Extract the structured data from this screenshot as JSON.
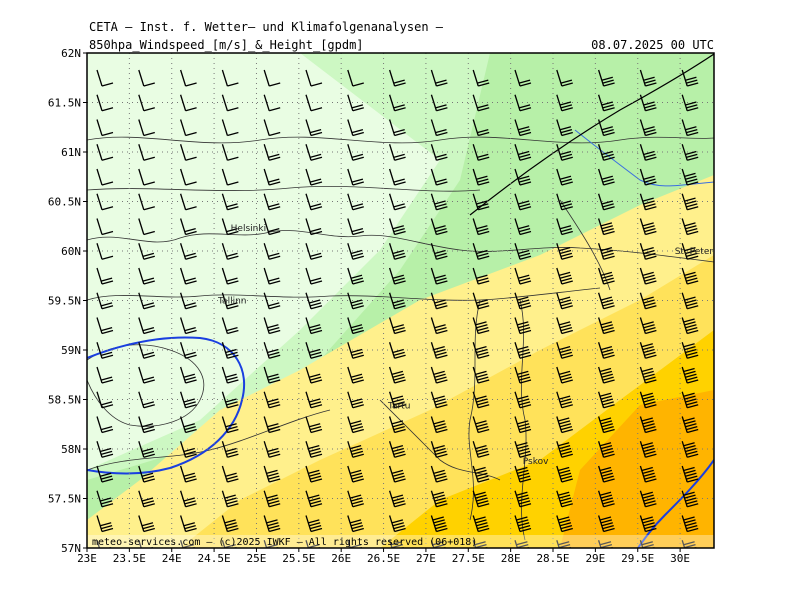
{
  "header": {
    "line1": "CETA – Inst. f. Wetter– und Klimafolgenanalysen –",
    "line2": "850hpa_Windspeed_[m/s]_&_Height_[gpdm]",
    "date": "08.07.2025 00 UTC"
  },
  "map": {
    "lat_labels": [
      "62N",
      "61.5N",
      "61N",
      "60.5N",
      "60N",
      "59.5N",
      "59N",
      "58.5N",
      "58N",
      "57.5N",
      "57N"
    ],
    "lon_labels": [
      "23E",
      "23.5E",
      "24E",
      "24.5E",
      "25E",
      "25.5E",
      "26E",
      "26.5E",
      "27E",
      "27.5E",
      "28E",
      "28.5E",
      "29E",
      "29.5E",
      "30E"
    ],
    "cities": [
      {
        "name": "Helsinki",
        "lon": 24.94,
        "lat": 60.17
      },
      {
        "name": "Tallinn",
        "lon": 24.75,
        "lat": 59.44
      },
      {
        "name": "St. Petersbg.",
        "lon": 30.31,
        "lat": 59.94
      },
      {
        "name": "Tartu",
        "lon": 26.72,
        "lat": 58.38
      },
      {
        "name": "Pskov",
        "lon": 28.33,
        "lat": 57.82
      }
    ],
    "footer": "meteo-services.com – (c)2025 IWKF – All rights reserved (06+018)",
    "colors": {
      "band_lightest": "#e9fde3",
      "band_light_green": "#cdf8c3",
      "band_green": "#b7f0a8",
      "band_light_yellow": "#fff08c",
      "band_yellow": "#ffe25a",
      "band_gold": "#ffd200",
      "band_orange": "#ffb400",
      "height_contour": "#1a3fe0",
      "river": "#3b6fe0"
    }
  }
}
